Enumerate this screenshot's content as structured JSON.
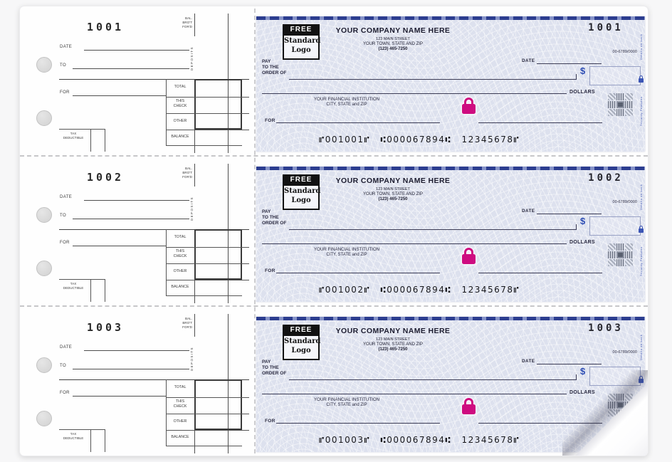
{
  "stub": {
    "date": "DATE",
    "to": "TO",
    "for": "FOR",
    "bal_brot_ford": "BAL.\nBRO'T\nFOR'D",
    "deposits": "DEPOSITS",
    "rows": {
      "total": "TOTAL",
      "this_check": "THIS\nCHECK",
      "other": "OTHER",
      "balance": "BALANCE"
    },
    "tax_deductible": "TAX\nDEDUCTIBLE"
  },
  "check": {
    "logo": {
      "free": "FREE",
      "name": "Standard\nLogo"
    },
    "company": {
      "name": "YOUR COMPANY NAME HERE",
      "street": "123 MAIN STREET",
      "city_state_zip": "YOUR TOWN, STATE AND ZIP",
      "phone": "(123) 465-7250"
    },
    "fraction": "00-6789/0000",
    "date_label": "DATE",
    "pay_to_order": "PAY\nTO THE\nORDER OF",
    "dollar_sign": "$",
    "dollars_label": "DOLLARS",
    "bank": {
      "name": "YOUR FINANCIAL INSTITUTION",
      "city_state_zip": "CITY, STATE and ZIP"
    },
    "for_label": "FOR",
    "edge": {
      "details": "Details on back",
      "security": "Security Features"
    }
  },
  "checks": [
    {
      "number": "1001",
      "micr": "⑈001001⑈ ⑆000067894⑆ 12345678⑈"
    },
    {
      "number": "1002",
      "micr": "⑈001002⑈ ⑆000067894⑆ 12345678⑈"
    },
    {
      "number": "1003",
      "micr": "⑈001003⑈ ⑆000067894⑆ 12345678⑈"
    }
  ],
  "colors": {
    "check_background": "#dde1ee",
    "top_border_navy": "#2c3d8f",
    "security_lock_magenta": "#ce0c80",
    "ink_navy": "#2a2a40",
    "ink_blue": "#2b4bb3",
    "micr_black": "#18181c"
  }
}
